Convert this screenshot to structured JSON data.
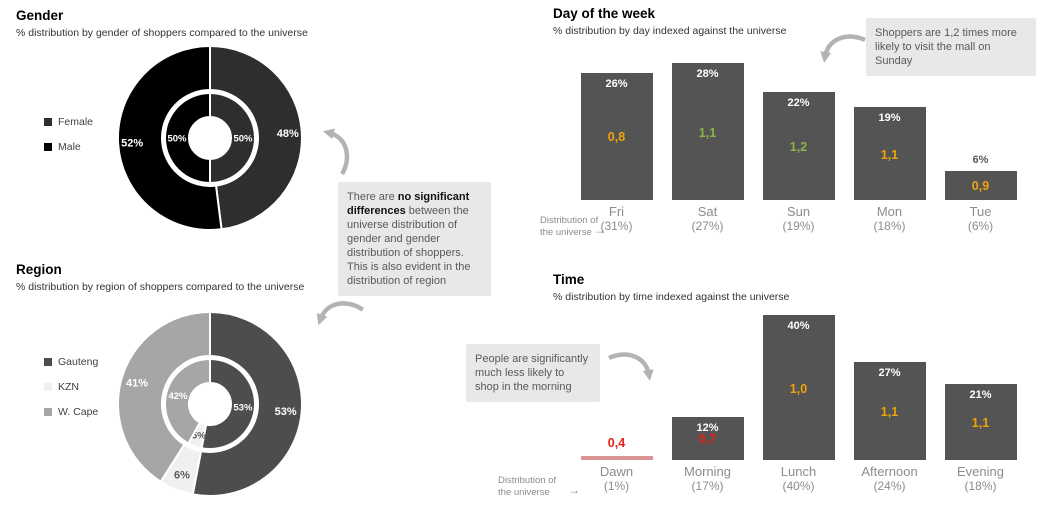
{
  "chart_data": [
    {
      "id": "gender-donut",
      "type": "pie",
      "title": "Gender",
      "subtitle": "% distribution by gender of shoppers compared to the universe",
      "rings": [
        {
          "name": "shoppers-outer",
          "slices": [
            {
              "label": "Female",
              "value": 48,
              "text": "48%",
              "color": "#2E2E2E",
              "text_color": "#FFFFFF"
            },
            {
              "label": "Male",
              "value": 52,
              "text": "52%",
              "color": "#000000",
              "text_color": "#FFFFFF"
            }
          ]
        },
        {
          "name": "universe-inner",
          "slices": [
            {
              "label": "Female",
              "value": 50,
              "text": "50%",
              "color": "#2E2E2E",
              "text_color": "#FFFFFF"
            },
            {
              "label": "Male",
              "value": 50,
              "text": "50%",
              "color": "#000000",
              "text_color": "#FFFFFF"
            }
          ]
        }
      ]
    },
    {
      "id": "region-donut",
      "type": "pie",
      "title": "Region",
      "subtitle": "% distribution by region of shoppers compared to the universe",
      "rings": [
        {
          "name": "shoppers-outer",
          "slices": [
            {
              "label": "Gauteng",
              "value": 53,
              "text": "53%",
              "color": "#4D4D4D",
              "text_color": "#FFFFFF"
            },
            {
              "label": "KZN",
              "value": 6,
              "text": "6%",
              "color": "#F0F0F0",
              "text_color": "#595959"
            },
            {
              "label": "W. Cape",
              "value": 41,
              "text": "41%",
              "color": "#A6A6A6",
              "text_color": "#FFFFFF"
            }
          ]
        },
        {
          "name": "universe-inner",
          "slices": [
            {
              "label": "Gauteng",
              "value": 53,
              "text": "53%",
              "color": "#4D4D4D",
              "text_color": "#FFFFFF"
            },
            {
              "label": "KZN",
              "value": 5,
              "text": "5%",
              "color": "#F0F0F0",
              "text_color": "#595959"
            },
            {
              "label": "W. Cape",
              "value": 42,
              "text": "42%",
              "color": "#A6A6A6",
              "text_color": "#FFFFFF"
            }
          ]
        }
      ]
    },
    {
      "id": "day-bars",
      "type": "bar",
      "title": "Day of the week",
      "subtitle": "% distribution by day indexed against the universe",
      "bar_color": "#545454",
      "ylim": [
        0,
        30
      ],
      "bars": [
        {
          "category": "Fri",
          "universe": "(31%)",
          "value": 26,
          "pct_label": "26%",
          "pct_pos": "in",
          "index": "0,8",
          "index_color": "#F0A30A"
        },
        {
          "category": "Sat",
          "universe": "(27%)",
          "value": 28,
          "pct_label": "28%",
          "pct_pos": "in",
          "index": "1,1",
          "index_color": "#8DB44A"
        },
        {
          "category": "Sun",
          "universe": "(19%)",
          "value": 22,
          "pct_label": "22%",
          "pct_pos": "in",
          "index": "1,2",
          "index_color": "#8DB44A"
        },
        {
          "category": "Mon",
          "universe": "(18%)",
          "value": 19,
          "pct_label": "19%",
          "pct_pos": "in",
          "index": "1,1",
          "index_color": "#F0A30A"
        },
        {
          "category": "Tue",
          "universe": "(6%)",
          "value": 6,
          "pct_label": "6%",
          "pct_pos": "above",
          "index": "0,9",
          "index_color": "#F0A30A"
        }
      ]
    },
    {
      "id": "time-bars",
      "type": "bar",
      "title": "Time",
      "subtitle": "% distribution by time indexed against the universe",
      "bar_color": "#545454",
      "ylim": [
        0,
        45
      ],
      "bars": [
        {
          "category": "Dawn",
          "universe": "(1%)",
          "value": 1,
          "pct_label": "",
          "pct_pos": "none",
          "index": "0,4",
          "index_color": "#E32213",
          "bar_color": "#D99694"
        },
        {
          "category": "Morning",
          "universe": "(17%)",
          "value": 12,
          "pct_label": "12%",
          "pct_pos": "in",
          "index": "0,7",
          "index_color": "#E32213"
        },
        {
          "category": "Lunch",
          "universe": "(40%)",
          "value": 40,
          "pct_label": "40%",
          "pct_pos": "in",
          "index": "1,0",
          "index_color": "#F0A30A"
        },
        {
          "category": "Afternoon",
          "universe": "(24%)",
          "value": 27,
          "pct_label": "27%",
          "pct_pos": "in",
          "index": "1,1",
          "index_color": "#F0A30A"
        },
        {
          "category": "Evening",
          "universe": "(18%)",
          "value": 21,
          "pct_label": "21%",
          "pct_pos": "in",
          "index": "1,1",
          "index_color": "#F0A30A"
        }
      ]
    }
  ],
  "callouts": {
    "main": {
      "pre": "There are ",
      "bold": "no significant differences",
      "post": " between the universe distribution of gender and gender distribution of shoppers. This is also evident in the distribution of region"
    },
    "sunday": "Shoppers are 1,2 times more likely to visit the mall on Sunday",
    "morning": "People are significantly much less likely to shop in the morning"
  },
  "labels": {
    "universe_line1": "Distribution of",
    "universe_line2": "the universe",
    "arrow_glyph": "→"
  },
  "colors": {
    "bar": "#545454",
    "index_yellow": "#F0A30A",
    "index_green": "#8DB44A",
    "index_red": "#E32213",
    "callout_bg": "#E8E8E8",
    "hand_arrow": "#B3B3B3",
    "axis_text": "#8C8C8C"
  }
}
